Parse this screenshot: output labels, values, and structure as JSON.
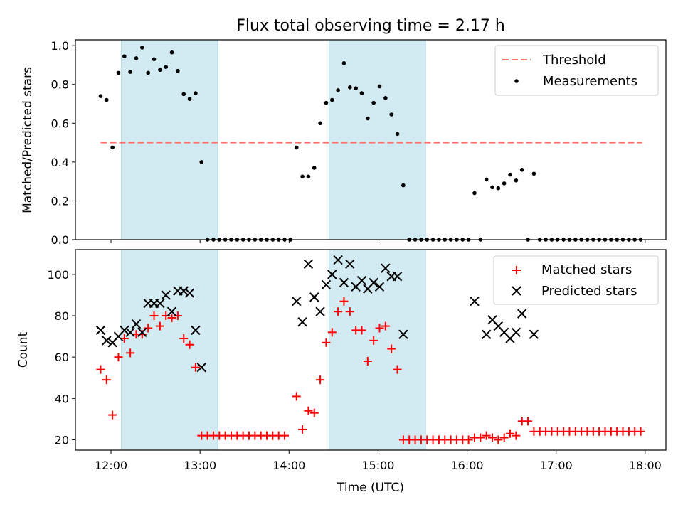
{
  "title": "Flux total observing time = 2.17 h",
  "colors": {
    "band": "#add8e6",
    "threshold": "#ff7070",
    "measurement": "#000000",
    "matched": "#ff0000",
    "predicted": "#000000"
  },
  "chart_data": [
    {
      "type": "scatter",
      "ylabel": "Matched/Predicted stars",
      "xlim": [
        "11:36",
        "18:14"
      ],
      "ylim": [
        0,
        1.03
      ],
      "yticks": [
        0.0,
        0.2,
        0.4,
        0.6,
        0.8,
        1.0
      ],
      "ytick_labels": [
        "0.0",
        "0.2",
        "0.4",
        "0.6",
        "0.8",
        "1.0"
      ],
      "shaded_intervals": [
        [
          "12:07",
          "13:12"
        ],
        [
          "14:27",
          "15:32"
        ]
      ],
      "legend": {
        "placement": "upper right",
        "entries": [
          "Threshold",
          "Measurements"
        ]
      },
      "series": [
        {
          "name": "Threshold",
          "style": "dashed-line",
          "x": [
            "11:53",
            "17:58"
          ],
          "values": [
            0.5,
            0.5
          ]
        },
        {
          "name": "Measurements",
          "style": "dots",
          "points": [
            [
              "11:53",
              0.74
            ],
            [
              "11:57",
              0.72
            ],
            [
              "12:01",
              0.475
            ],
            [
              "12:05",
              0.86
            ],
            [
              "12:09",
              0.945
            ],
            [
              "12:13",
              0.865
            ],
            [
              "12:17",
              0.935
            ],
            [
              "12:21",
              0.99
            ],
            [
              "12:25",
              0.86
            ],
            [
              "12:29",
              0.93
            ],
            [
              "12:33",
              0.875
            ],
            [
              "12:37",
              0.89
            ],
            [
              "12:41",
              0.965
            ],
            [
              "12:45",
              0.87
            ],
            [
              "12:49",
              0.75
            ],
            [
              "12:53",
              0.725
            ],
            [
              "12:57",
              0.755
            ],
            [
              "13:01",
              0.4
            ],
            [
              "13:05",
              0.0
            ],
            [
              "13:09",
              0.0
            ],
            [
              "13:13",
              0.0
            ],
            [
              "13:17",
              0.0
            ],
            [
              "13:21",
              0.0
            ],
            [
              "13:25",
              0.0
            ],
            [
              "13:29",
              0.0
            ],
            [
              "13:33",
              0.0
            ],
            [
              "13:37",
              0.0
            ],
            [
              "13:41",
              0.0
            ],
            [
              "13:45",
              0.0
            ],
            [
              "13:49",
              0.0
            ],
            [
              "13:53",
              0.0
            ],
            [
              "13:57",
              0.0
            ],
            [
              "14:01",
              0.0
            ],
            [
              "14:05",
              0.475
            ],
            [
              "14:09",
              0.325
            ],
            [
              "14:13",
              0.325
            ],
            [
              "14:17",
              0.37
            ],
            [
              "14:21",
              0.6
            ],
            [
              "14:25",
              0.705
            ],
            [
              "14:29",
              0.72
            ],
            [
              "14:33",
              0.77
            ],
            [
              "14:37",
              0.91
            ],
            [
              "14:41",
              0.785
            ],
            [
              "14:45",
              0.78
            ],
            [
              "14:49",
              0.755
            ],
            [
              "14:53",
              0.625
            ],
            [
              "14:57",
              0.705
            ],
            [
              "15:01",
              0.79
            ],
            [
              "15:05",
              0.73
            ],
            [
              "15:09",
              0.645
            ],
            [
              "15:13",
              0.545
            ],
            [
              "15:17",
              0.28
            ],
            [
              "15:21",
              0.0
            ],
            [
              "15:25",
              0.0
            ],
            [
              "15:29",
              0.0
            ],
            [
              "15:33",
              0.0
            ],
            [
              "15:37",
              0.0
            ],
            [
              "15:41",
              0.0
            ],
            [
              "15:45",
              0.0
            ],
            [
              "15:49",
              0.0
            ],
            [
              "15:53",
              0.0
            ],
            [
              "15:57",
              0.0
            ],
            [
              "16:01",
              0.0
            ],
            [
              "16:05",
              0.24
            ],
            [
              "16:09",
              0.0
            ],
            [
              "16:13",
              0.31
            ],
            [
              "16:17",
              0.27
            ],
            [
              "16:21",
              0.265
            ],
            [
              "16:25",
              0.29
            ],
            [
              "16:29",
              0.335
            ],
            [
              "16:33",
              0.305
            ],
            [
              "16:37",
              0.36
            ],
            [
              "16:41",
              0.0
            ],
            [
              "16:45",
              0.34
            ],
            [
              "16:49",
              0.0
            ],
            [
              "16:53",
              0.0
            ],
            [
              "16:57",
              0.0
            ],
            [
              "17:01",
              0.0
            ],
            [
              "17:05",
              0.0
            ],
            [
              "17:09",
              0.0
            ],
            [
              "17:13",
              0.0
            ],
            [
              "17:17",
              0.0
            ],
            [
              "17:21",
              0.0
            ],
            [
              "17:25",
              0.0
            ],
            [
              "17:29",
              0.0
            ],
            [
              "17:33",
              0.0
            ],
            [
              "17:37",
              0.0
            ],
            [
              "17:41",
              0.0
            ],
            [
              "17:45",
              0.0
            ],
            [
              "17:49",
              0.0
            ],
            [
              "17:53",
              0.0
            ],
            [
              "17:57",
              0.0
            ]
          ]
        }
      ]
    },
    {
      "type": "scatter",
      "xlabel": "Time (UTC)",
      "ylabel": "Count",
      "xlim": [
        "11:36",
        "18:14"
      ],
      "ylim": [
        15,
        112
      ],
      "xticks": [
        "12:00",
        "13:00",
        "14:00",
        "15:00",
        "16:00",
        "17:00",
        "18:00"
      ],
      "yticks": [
        20,
        40,
        60,
        80,
        100
      ],
      "ytick_labels": [
        "20",
        "40",
        "60",
        "80",
        "100"
      ],
      "shaded_intervals": [
        [
          "12:07",
          "13:12"
        ],
        [
          "14:27",
          "15:32"
        ]
      ],
      "legend": {
        "placement": "upper right",
        "entries": [
          "Matched stars",
          "Predicted stars"
        ]
      },
      "series": [
        {
          "name": "Matched stars",
          "marker": "+",
          "points": [
            [
              "11:53",
              54
            ],
            [
              "11:57",
              49
            ],
            [
              "12:01",
              32
            ],
            [
              "12:05",
              60
            ],
            [
              "12:09",
              69
            ],
            [
              "12:13",
              62
            ],
            [
              "12:17",
              71
            ],
            [
              "12:21",
              71
            ],
            [
              "12:25",
              74
            ],
            [
              "12:29",
              80
            ],
            [
              "12:33",
              75
            ],
            [
              "12:37",
              80
            ],
            [
              "12:41",
              79
            ],
            [
              "12:45",
              80
            ],
            [
              "12:49",
              69
            ],
            [
              "12:53",
              66
            ],
            [
              "12:57",
              55
            ],
            [
              "13:01",
              22
            ],
            [
              "13:05",
              22
            ],
            [
              "13:09",
              22
            ],
            [
              "13:13",
              22
            ],
            [
              "13:17",
              22
            ],
            [
              "13:21",
              22
            ],
            [
              "13:25",
              22
            ],
            [
              "13:29",
              22
            ],
            [
              "13:33",
              22
            ],
            [
              "13:37",
              22
            ],
            [
              "13:41",
              22
            ],
            [
              "13:45",
              22
            ],
            [
              "13:49",
              22
            ],
            [
              "13:53",
              22
            ],
            [
              "13:57",
              22
            ],
            [
              "14:05",
              41
            ],
            [
              "14:09",
              25
            ],
            [
              "14:13",
              34
            ],
            [
              "14:17",
              33
            ],
            [
              "14:21",
              49
            ],
            [
              "14:25",
              67
            ],
            [
              "14:29",
              72
            ],
            [
              "14:33",
              82
            ],
            [
              "14:37",
              87
            ],
            [
              "14:41",
              82
            ],
            [
              "14:45",
              73
            ],
            [
              "14:49",
              73
            ],
            [
              "14:53",
              58
            ],
            [
              "14:57",
              68
            ],
            [
              "15:01",
              74
            ],
            [
              "15:05",
              75
            ],
            [
              "15:09",
              64
            ],
            [
              "15:13",
              54
            ],
            [
              "15:17",
              20
            ],
            [
              "15:21",
              20
            ],
            [
              "15:25",
              20
            ],
            [
              "15:29",
              20
            ],
            [
              "15:33",
              20
            ],
            [
              "15:37",
              20
            ],
            [
              "15:41",
              20
            ],
            [
              "15:45",
              20
            ],
            [
              "15:49",
              20
            ],
            [
              "15:53",
              20
            ],
            [
              "15:57",
              20
            ],
            [
              "16:01",
              20
            ],
            [
              "16:05",
              21
            ],
            [
              "16:09",
              21
            ],
            [
              "16:13",
              22
            ],
            [
              "16:17",
              21
            ],
            [
              "16:21",
              20
            ],
            [
              "16:25",
              21
            ],
            [
              "16:29",
              23
            ],
            [
              "16:33",
              22
            ],
            [
              "16:37",
              29
            ],
            [
              "16:41",
              29
            ],
            [
              "16:45",
              24
            ],
            [
              "16:49",
              24
            ],
            [
              "16:53",
              24
            ],
            [
              "16:57",
              24
            ],
            [
              "17:01",
              24
            ],
            [
              "17:05",
              24
            ],
            [
              "17:09",
              24
            ],
            [
              "17:13",
              24
            ],
            [
              "17:17",
              24
            ],
            [
              "17:21",
              24
            ],
            [
              "17:25",
              24
            ],
            [
              "17:29",
              24
            ],
            [
              "17:33",
              24
            ],
            [
              "17:37",
              24
            ],
            [
              "17:41",
              24
            ],
            [
              "17:45",
              24
            ],
            [
              "17:49",
              24
            ],
            [
              "17:53",
              24
            ],
            [
              "17:57",
              24
            ]
          ]
        },
        {
          "name": "Predicted stars",
          "marker": "x",
          "points": [
            [
              "11:53",
              73
            ],
            [
              "11:57",
              68
            ],
            [
              "12:01",
              67
            ],
            [
              "12:05",
              70
            ],
            [
              "12:09",
              73
            ],
            [
              "12:13",
              72
            ],
            [
              "12:17",
              76
            ],
            [
              "12:21",
              72
            ],
            [
              "12:25",
              86
            ],
            [
              "12:29",
              86
            ],
            [
              "12:33",
              86
            ],
            [
              "12:37",
              90
            ],
            [
              "12:41",
              82
            ],
            [
              "12:45",
              92
            ],
            [
              "12:49",
              92
            ],
            [
              "12:53",
              91
            ],
            [
              "12:57",
              73
            ],
            [
              "13:01",
              55
            ],
            [
              "14:05",
              87
            ],
            [
              "14:09",
              77
            ],
            [
              "14:13",
              105
            ],
            [
              "14:17",
              89
            ],
            [
              "14:21",
              82
            ],
            [
              "14:25",
              95
            ],
            [
              "14:29",
              100
            ],
            [
              "14:33",
              107
            ],
            [
              "14:37",
              96
            ],
            [
              "14:41",
              105
            ],
            [
              "14:45",
              94
            ],
            [
              "14:49",
              97
            ],
            [
              "14:53",
              93
            ],
            [
              "14:57",
              96
            ],
            [
              "15:01",
              94
            ],
            [
              "15:05",
              103
            ],
            [
              "15:09",
              99
            ],
            [
              "15:13",
              99
            ],
            [
              "15:17",
              71
            ],
            [
              "16:05",
              87
            ],
            [
              "16:13",
              71
            ],
            [
              "16:17",
              78
            ],
            [
              "16:21",
              75
            ],
            [
              "16:25",
              72
            ],
            [
              "16:29",
              69
            ],
            [
              "16:33",
              72
            ],
            [
              "16:37",
              81
            ],
            [
              "16:45",
              71
            ]
          ]
        }
      ]
    }
  ]
}
